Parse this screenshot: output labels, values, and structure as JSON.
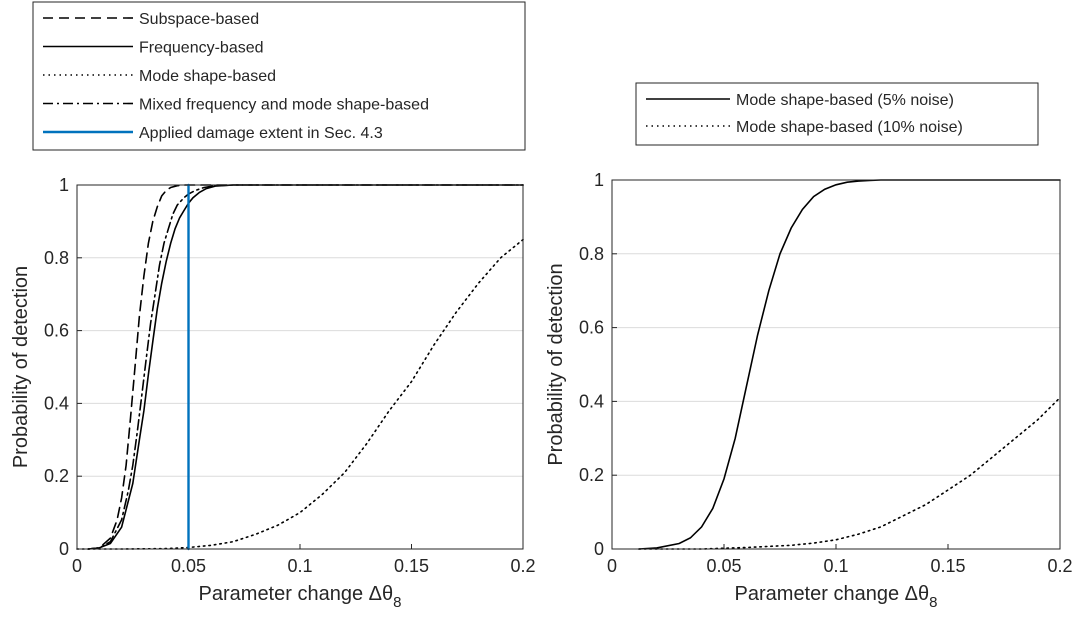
{
  "chart_data": [
    {
      "type": "line",
      "xlabel_main": "Parameter change Δθ",
      "xlabel_sub": "8",
      "ylabel": "Probability of detection",
      "xlim": [
        0,
        0.2
      ],
      "ylim": [
        0,
        1
      ],
      "xticks": [
        "0",
        "0.05",
        "0.1",
        "0.15",
        "0.2"
      ],
      "yticks": [
        "0",
        "0.2",
        "0.4",
        "0.6",
        "0.8",
        "1"
      ],
      "grid": "horizontal",
      "legend_position": "above-left",
      "series": [
        {
          "name": "Subspace-based",
          "style": "dashed",
          "color": "#000000",
          "x": [
            0.005,
            0.01,
            0.015,
            0.018,
            0.02,
            0.022,
            0.024,
            0.026,
            0.028,
            0.03,
            0.032,
            0.034,
            0.036,
            0.038,
            0.04,
            0.042,
            0.045,
            0.048,
            0.052,
            0.06,
            0.08,
            0.2
          ],
          "y": [
            0.0,
            0.003,
            0.03,
            0.08,
            0.14,
            0.23,
            0.36,
            0.5,
            0.64,
            0.75,
            0.84,
            0.9,
            0.94,
            0.97,
            0.985,
            0.993,
            0.998,
            1.0,
            1.0,
            1.0,
            1.0,
            1.0
          ]
        },
        {
          "name": "Frequency-based",
          "style": "solid",
          "color": "#000000",
          "x": [
            0.005,
            0.01,
            0.015,
            0.02,
            0.025,
            0.028,
            0.03,
            0.032,
            0.034,
            0.036,
            0.038,
            0.04,
            0.042,
            0.044,
            0.046,
            0.048,
            0.05,
            0.052,
            0.055,
            0.058,
            0.062,
            0.07,
            0.08,
            0.2
          ],
          "y": [
            0.0,
            0.003,
            0.015,
            0.06,
            0.18,
            0.3,
            0.38,
            0.48,
            0.57,
            0.66,
            0.73,
            0.79,
            0.84,
            0.88,
            0.91,
            0.93,
            0.95,
            0.965,
            0.98,
            0.99,
            0.997,
            1.0,
            1.0,
            1.0
          ]
        },
        {
          "name": "Mode shape-based",
          "style": "dotted",
          "color": "#000000",
          "x": [
            0.0,
            0.02,
            0.04,
            0.05,
            0.06,
            0.07,
            0.08,
            0.09,
            0.1,
            0.11,
            0.12,
            0.13,
            0.14,
            0.15,
            0.16,
            0.17,
            0.18,
            0.19,
            0.2
          ],
          "y": [
            0.0,
            0.0,
            0.001,
            0.004,
            0.01,
            0.02,
            0.04,
            0.065,
            0.1,
            0.15,
            0.21,
            0.29,
            0.38,
            0.46,
            0.56,
            0.65,
            0.73,
            0.8,
            0.85
          ]
        },
        {
          "name": "Mixed frequency and mode shape-based",
          "style": "dashdot",
          "color": "#000000",
          "x": [
            0.005,
            0.01,
            0.015,
            0.02,
            0.023,
            0.025,
            0.027,
            0.029,
            0.031,
            0.033,
            0.035,
            0.037,
            0.039,
            0.041,
            0.043,
            0.045,
            0.048,
            0.05,
            0.053,
            0.057,
            0.062,
            0.07,
            0.2
          ],
          "y": [
            0.0,
            0.003,
            0.02,
            0.08,
            0.16,
            0.23,
            0.32,
            0.42,
            0.52,
            0.62,
            0.7,
            0.78,
            0.84,
            0.88,
            0.92,
            0.945,
            0.965,
            0.975,
            0.985,
            0.993,
            0.998,
            1.0,
            1.0
          ]
        },
        {
          "name": "Applied damage extent in Sec. 4.3",
          "style": "solid",
          "color": "#0072BD",
          "x": [
            0.05,
            0.05
          ],
          "y": [
            0,
            1
          ]
        }
      ]
    },
    {
      "type": "line",
      "xlabel_main": "Parameter change Δθ",
      "xlabel_sub": "8",
      "ylabel": "Probability of detection",
      "xlim": [
        0,
        0.2
      ],
      "ylim": [
        0,
        1
      ],
      "xticks": [
        "0",
        "0.05",
        "0.1",
        "0.15",
        "0.2"
      ],
      "yticks": [
        "0",
        "0.2",
        "0.4",
        "0.6",
        "0.8",
        "1"
      ],
      "grid": "horizontal",
      "legend_position": "above",
      "series": [
        {
          "name": "Mode shape-based (5% noise)",
          "style": "solid",
          "color": "#000000",
          "x": [
            0.012,
            0.02,
            0.03,
            0.035,
            0.04,
            0.045,
            0.05,
            0.055,
            0.06,
            0.065,
            0.07,
            0.075,
            0.08,
            0.085,
            0.09,
            0.095,
            0.1,
            0.105,
            0.11,
            0.115,
            0.12,
            0.13,
            0.2
          ],
          "y": [
            0.0,
            0.003,
            0.015,
            0.03,
            0.06,
            0.11,
            0.19,
            0.3,
            0.44,
            0.58,
            0.7,
            0.8,
            0.87,
            0.92,
            0.955,
            0.975,
            0.987,
            0.994,
            0.997,
            0.999,
            1.0,
            1.0,
            1.0
          ]
        },
        {
          "name": "Mode shape-based (10% noise)",
          "style": "dotted",
          "color": "#000000",
          "x": [
            0.012,
            0.04,
            0.06,
            0.08,
            0.09,
            0.1,
            0.11,
            0.12,
            0.13,
            0.14,
            0.15,
            0.16,
            0.17,
            0.18,
            0.19,
            0.2
          ],
          "y": [
            0.0,
            0.0,
            0.004,
            0.01,
            0.016,
            0.025,
            0.04,
            0.06,
            0.09,
            0.12,
            0.16,
            0.2,
            0.25,
            0.3,
            0.35,
            0.41
          ]
        }
      ]
    }
  ]
}
